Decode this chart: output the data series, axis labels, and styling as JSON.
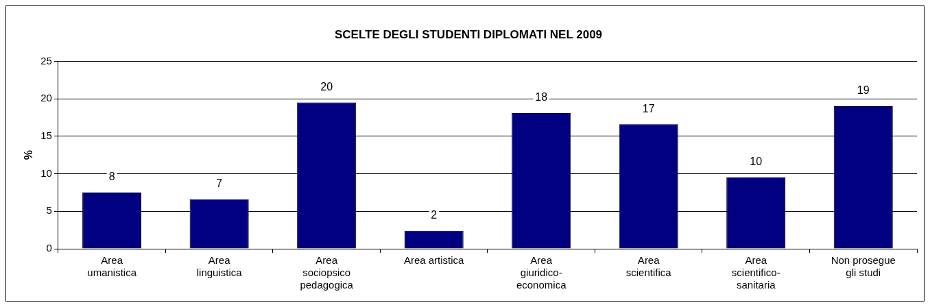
{
  "chart_data": {
    "type": "bar",
    "title": "SCELTE DEGLI STUDENTI DIPLOMATI NEL 2009",
    "ylabel": "%",
    "categories": [
      "Area umanistica",
      "Area linguistica",
      "Area sociopsico pedagogica",
      "Area artistica",
      "Area giuridico-economica",
      "Area scientifica",
      "Area scientifico-sanitaria",
      "Non prosegue gli studi"
    ],
    "values": [
      7.5,
      6.6,
      19.5,
      2.4,
      18.1,
      16.6,
      9.5,
      19
    ],
    "value_labels": [
      "8",
      "7",
      "20",
      "2",
      "18",
      "17",
      "10",
      "19"
    ],
    "color": "#000080",
    "ylim": [
      0,
      25
    ],
    "yticks": [
      0,
      5,
      10,
      15,
      20,
      25
    ],
    "grid": "y",
    "legend": false
  }
}
